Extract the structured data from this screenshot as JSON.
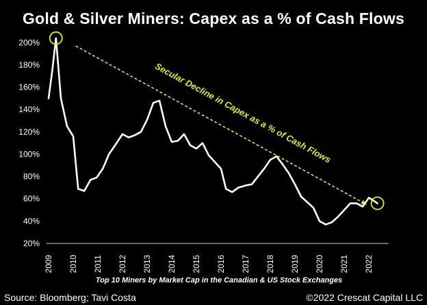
{
  "chart_data": {
    "type": "line",
    "title": "Gold & Silver Miners: Capex as a % of Cash Flows",
    "xlabel": "Top 10 Miners by Market Cap in the Canadian & US Stock Exchanges",
    "ylabel": "",
    "ylim": [
      20,
      210
    ],
    "xlim": [
      2009,
      2022.5
    ],
    "y_tick_values": [
      20,
      40,
      60,
      80,
      100,
      120,
      140,
      160,
      180,
      200
    ],
    "y_tick_labels": [
      "20%",
      "40%",
      "60%",
      "80%",
      "100%",
      "120%",
      "140%",
      "160%",
      "180%",
      "200%"
    ],
    "x_tick_values": [
      2009,
      2010,
      2011,
      2012,
      2013,
      2014,
      2015,
      2016,
      2017,
      2018,
      2019,
      2020,
      2021,
      2022
    ],
    "x_tick_labels": [
      "2009",
      "2010",
      "2011",
      "2012",
      "2013",
      "2014",
      "2015",
      "2016",
      "2017",
      "2018",
      "2019",
      "2020",
      "2021",
      "2022"
    ],
    "grid": false,
    "line_color": "#ffffff",
    "annotation_color": "#d4f02a",
    "annotation": {
      "text": "Secular Decline in Capex as a % of Cash Flows",
      "trend_start": [
        2010.1,
        197
      ],
      "trend_end": [
        2021.9,
        55
      ]
    },
    "highlight_points": [
      [
        2009.3,
        204
      ],
      [
        2022.35,
        56
      ]
    ],
    "series": [
      {
        "x": [
          2009.0,
          2009.15,
          2009.3,
          2009.5,
          2009.75,
          2010.0,
          2010.2,
          2010.45,
          2010.7,
          2010.95,
          2011.2,
          2011.45,
          2011.7,
          2012.0,
          2012.25,
          2012.5,
          2012.75,
          2013.0,
          2013.25,
          2013.5,
          2013.75,
          2014.0,
          2014.25,
          2014.5,
          2014.75,
          2015.0,
          2015.25,
          2015.5,
          2015.75,
          2016.0,
          2016.2,
          2016.45,
          2016.7,
          2017.0,
          2017.25,
          2017.5,
          2017.75,
          2018.0,
          2018.25,
          2018.5,
          2018.75,
          2019.0,
          2019.25,
          2019.5,
          2019.75,
          2020.0,
          2020.25,
          2020.5,
          2020.75,
          2021.0,
          2021.25,
          2021.5,
          2021.75,
          2022.0,
          2022.15,
          2022.35
        ],
        "y": [
          150,
          175,
          204,
          150,
          125,
          116,
          69,
          67,
          77,
          79,
          87,
          100,
          108,
          118,
          115,
          117,
          120,
          131,
          146,
          148,
          125,
          111,
          112,
          118,
          108,
          105,
          110,
          99,
          93,
          87,
          69,
          66,
          70,
          72,
          73,
          80,
          87,
          95,
          98,
          91,
          83,
          73,
          62,
          57,
          52,
          40,
          37,
          39,
          44,
          50,
          56,
          56,
          53,
          61,
          59,
          56
        ]
      }
    ]
  },
  "footer": {
    "source": "Source: Bloomberg; Tavi Costa",
    "copyright": "©2022 Crescat Capital LLC"
  }
}
